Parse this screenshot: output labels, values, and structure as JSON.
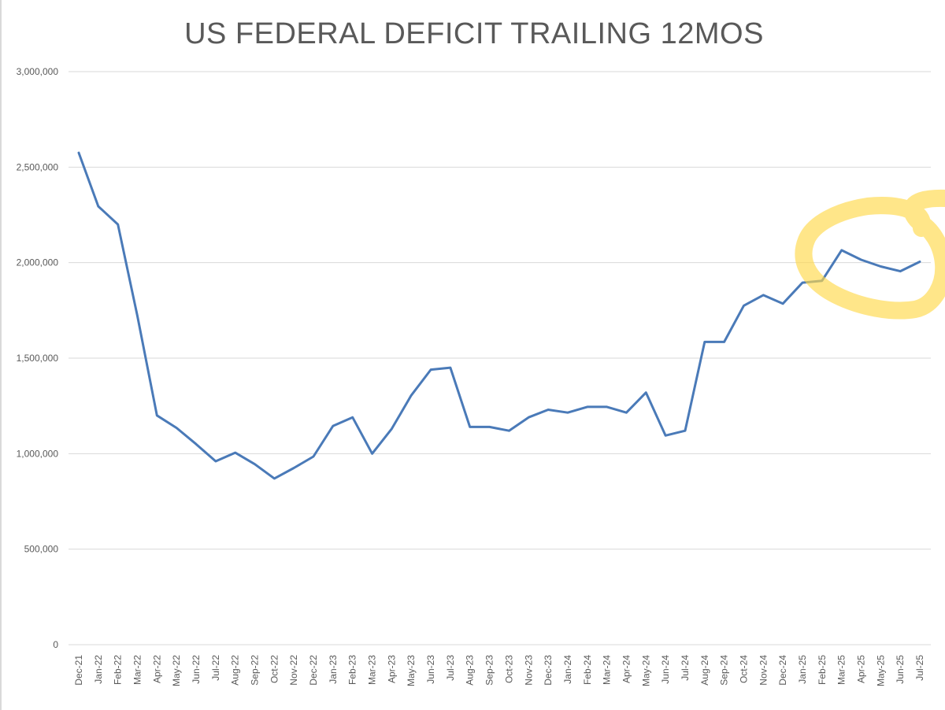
{
  "chart_data": {
    "type": "line",
    "title": "US FEDERAL DEFICIT TRAILING 12MOS",
    "xlabel": "",
    "ylabel": "",
    "ylim": [
      0,
      3000000
    ],
    "yticks": [
      "0",
      "500,000",
      "1,000,000",
      "1,500,000",
      "2,000,000",
      "2,500,000",
      "3,000,000"
    ],
    "ytick_values": [
      0,
      500000,
      1000000,
      1500000,
      2000000,
      2500000,
      3000000
    ],
    "grid": true,
    "line_color": "#4a7ab8",
    "highlight_color": "#ffd84a",
    "categories": [
      "Dec-21",
      "Jan-22",
      "Feb-22",
      "Mar-22",
      "Apr-22",
      "May-22",
      "Jun-22",
      "Jul-22",
      "Aug-22",
      "Sep-22",
      "Oct-22",
      "Nov-22",
      "Dec-22",
      "Jan-23",
      "Feb-23",
      "Mar-23",
      "Apr-23",
      "May-23",
      "Jun-23",
      "Jul-23",
      "Aug-23",
      "Sep-23",
      "Oct-23",
      "Nov-23",
      "Dec-23",
      "Jan-24",
      "Feb-24",
      "Mar-24",
      "Apr-24",
      "May-24",
      "Jun-24",
      "Jul-24",
      "Aug-24",
      "Sep-24",
      "Oct-24",
      "Nov-24",
      "Dec-24",
      "Jan-25",
      "Feb-25",
      "Mar-25",
      "Apr-25",
      "May-25",
      "Jun-25",
      "Jul-25"
    ],
    "values": [
      2575000,
      2295000,
      2200000,
      1720000,
      1200000,
      1135000,
      1050000,
      960000,
      1005000,
      945000,
      870000,
      925000,
      985000,
      1145000,
      1190000,
      1000000,
      1130000,
      1305000,
      1440000,
      1450000,
      1140000,
      1140000,
      1120000,
      1190000,
      1230000,
      1215000,
      1245000,
      1245000,
      1215000,
      1320000,
      1095000,
      1120000,
      1585000,
      1585000,
      1775000,
      1830000,
      1785000,
      1895000,
      1905000,
      2065000,
      2015000,
      1980000,
      1955000,
      2005000
    ]
  }
}
